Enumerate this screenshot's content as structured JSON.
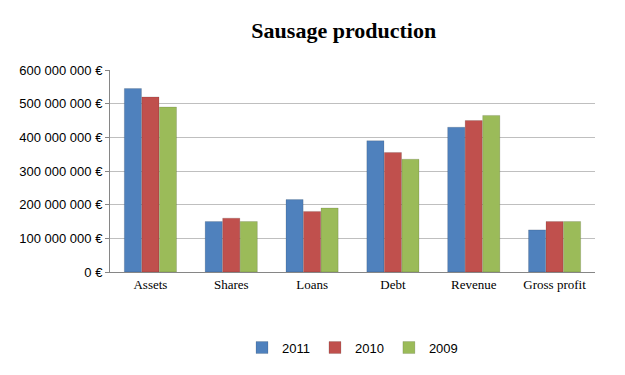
{
  "chart_data": {
    "type": "bar",
    "title": "Sausage production",
    "categories": [
      "Assets",
      "Shares",
      "Loans",
      "Debt",
      "Revenue",
      "Gross profit"
    ],
    "series": [
      {
        "name": "2011",
        "color": "#4f81bd",
        "values": [
          545000000,
          150000000,
          215000000,
          390000000,
          430000000,
          125000000
        ]
      },
      {
        "name": "2010",
        "color": "#c0504d",
        "values": [
          520000000,
          160000000,
          180000000,
          355000000,
          450000000,
          150000000
        ]
      },
      {
        "name": "2009",
        "color": "#9bbb59",
        "values": [
          490000000,
          150000000,
          190000000,
          335000000,
          465000000,
          150000000
        ]
      }
    ],
    "ylim": [
      0,
      600000000
    ],
    "yticks": [
      {
        "value": 0,
        "label": "0 €"
      },
      {
        "value": 100000000,
        "label": "100 000 000 €"
      },
      {
        "value": 200000000,
        "label": "200 000 000 €"
      },
      {
        "value": 300000000,
        "label": "300 000 000 €"
      },
      {
        "value": 400000000,
        "label": "400 000 000 €"
      },
      {
        "value": 500000000,
        "label": "500 000 000 €"
      },
      {
        "value": 600000000,
        "label": "600 000 000 €"
      }
    ],
    "grid": true,
    "legend": "bottom"
  }
}
